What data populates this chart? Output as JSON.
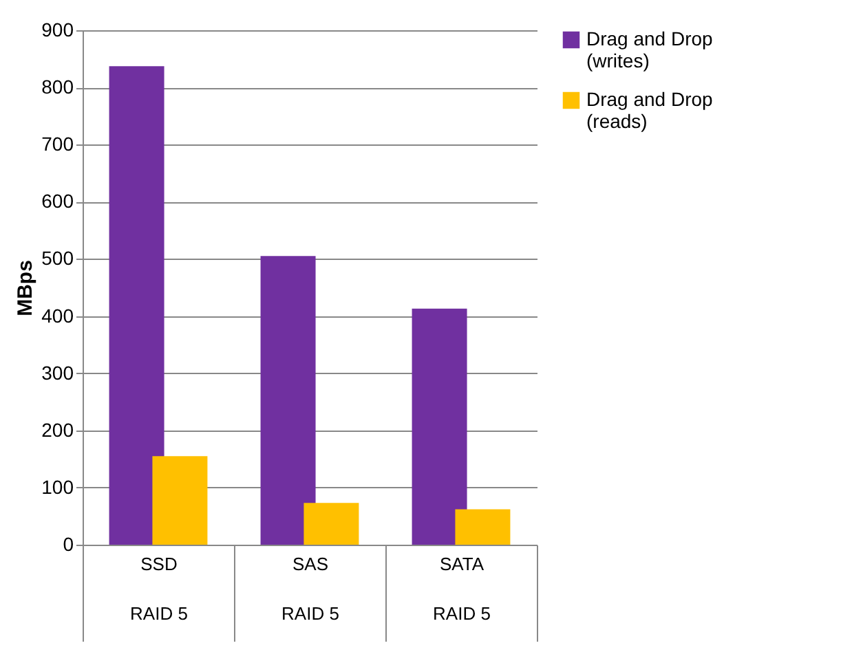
{
  "chart_data": {
    "type": "bar",
    "ylabel": "MBps",
    "categories": [
      "SSD\nRAID 5",
      "SAS\nRAID 5",
      "SATA\nRAID 5"
    ],
    "series": [
      {
        "name": "Drag and Drop\n(writes)",
        "color": "#7030a0",
        "values": [
          837,
          505,
          413
        ]
      },
      {
        "name": "Drag and Drop\n(reads)",
        "color": "#ffc000",
        "values": [
          155,
          73,
          62
        ]
      }
    ],
    "ylim": [
      0,
      900
    ],
    "yticks": [
      0,
      100,
      200,
      300,
      400,
      500,
      600,
      700,
      800,
      900
    ],
    "grid": "y",
    "legend": "right"
  }
}
